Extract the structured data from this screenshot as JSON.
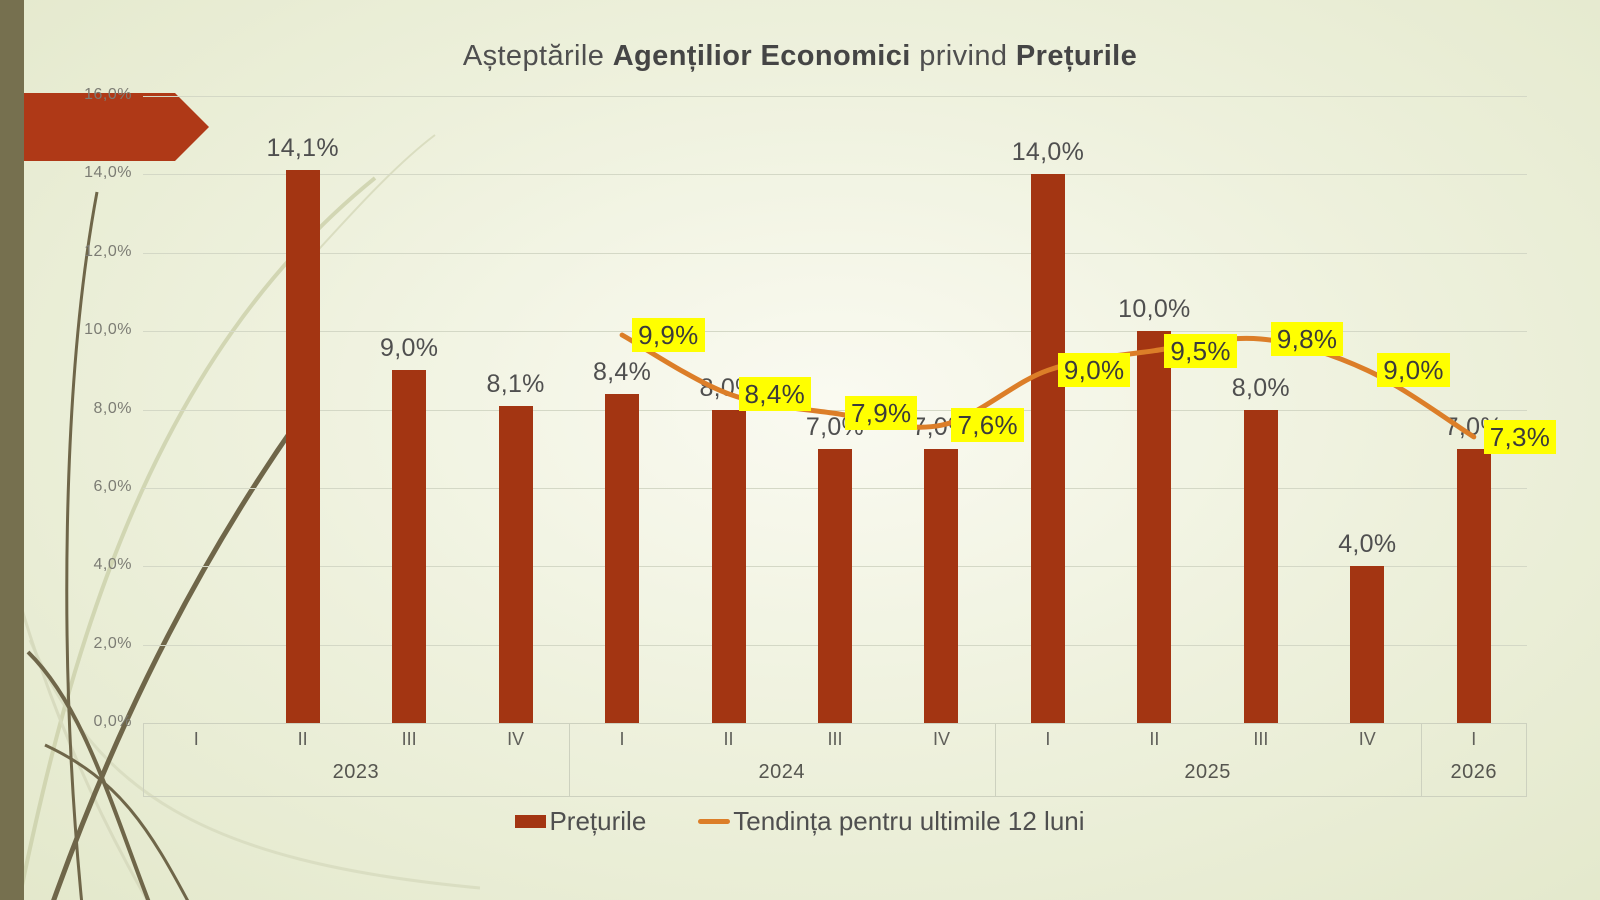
{
  "title": {
    "part1": "Așteptările ",
    "bold1": "Agențilior Economici",
    "part2": " privind ",
    "bold2": "Prețurile"
  },
  "colors": {
    "bar": "#a33512",
    "trend_line": "#dc7e28",
    "trend_label_bg": "#ffff00",
    "arrow": "#af3917",
    "left_strip": "#76704f",
    "background_edge": "#e3e8cb"
  },
  "chart_data": {
    "type": "bar",
    "quarters": [
      "I",
      "II",
      "III",
      "IV",
      "I",
      "II",
      "III",
      "IV",
      "I",
      "II",
      "III",
      "IV",
      "I"
    ],
    "year_groups": [
      {
        "label": "2023",
        "span": 4
      },
      {
        "label": "2024",
        "span": 4
      },
      {
        "label": "2025",
        "span": 4
      },
      {
        "label": "2026",
        "span": 1
      }
    ],
    "y_axis": {
      "min": 0,
      "max": 16,
      "step": 2,
      "grid": true,
      "tick_labels": [
        "0,0%",
        "2,0%",
        "4,0%",
        "6,0%",
        "8,0%",
        "10,0%",
        "12,0%",
        "14,0%",
        "16,0%"
      ]
    },
    "series": [
      {
        "name": "Prețurile",
        "type": "bar",
        "values": [
          null,
          14.1,
          9.0,
          8.1,
          8.4,
          8.0,
          7.0,
          7.0,
          14.0,
          10.0,
          8.0,
          4.0,
          7.0
        ],
        "labels": [
          null,
          "14,1%",
          "9,0%",
          "8,1%",
          "8,4%",
          "8,0%",
          "7,0%",
          "7,0%",
          "14,0%",
          "10,0%",
          "8,0%",
          "4,0%",
          "7,0%"
        ]
      },
      {
        "name": "Tendința  pentru ultimile 12 luni",
        "type": "line",
        "values": [
          null,
          null,
          null,
          null,
          9.9,
          8.4,
          7.9,
          7.6,
          9.0,
          9.5,
          9.8,
          9.0,
          7.3
        ],
        "labels": [
          null,
          null,
          null,
          null,
          "9,9%",
          "8,4%",
          "7,9%",
          "7,6%",
          "9,0%",
          "9,5%",
          "9,8%",
          "9,0%",
          "7,3%"
        ]
      }
    ],
    "legend_position": "bottom"
  },
  "legend": {
    "bar_label": "Prețurile",
    "line_label": "Tendința  pentru ultimile 12 luni"
  }
}
